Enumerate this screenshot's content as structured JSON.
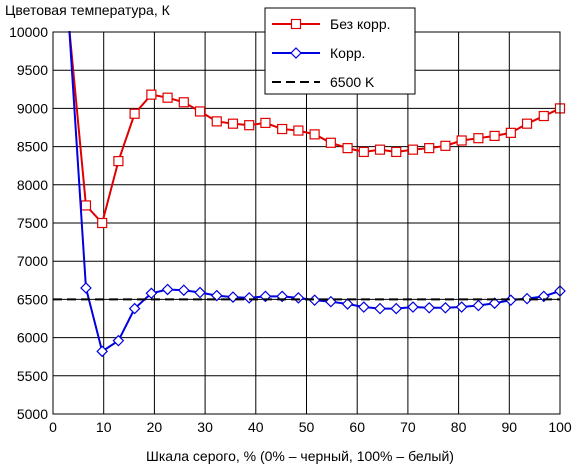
{
  "chart_data": {
    "type": "line",
    "ylabel": "Цветовая температура, К",
    "xlabel": "Шкала серого, % (0% – черный, 100% – белый)",
    "xlim": [
      0,
      100
    ],
    "ylim": [
      5000,
      10000
    ],
    "xticks": [
      0,
      10,
      20,
      30,
      40,
      50,
      60,
      70,
      80,
      90,
      100
    ],
    "yticks": [
      5000,
      5500,
      6000,
      6500,
      7000,
      7500,
      8000,
      8500,
      9000,
      9500,
      10000
    ],
    "grid": true,
    "legend_position": "top-center",
    "series": [
      {
        "name": "Без корр.",
        "color": "#e00000",
        "marker": "square",
        "x": [
          3.2,
          6.5,
          9.7,
          12.9,
          16.1,
          19.4,
          22.6,
          25.8,
          29.0,
          32.3,
          35.5,
          38.7,
          41.9,
          45.2,
          48.4,
          51.6,
          54.8,
          58.1,
          61.3,
          64.5,
          67.7,
          71.0,
          74.2,
          77.4,
          80.6,
          83.9,
          87.1,
          90.3,
          93.5,
          96.8,
          100.0
        ],
        "y": [
          10050,
          7730,
          7500,
          8310,
          8930,
          9180,
          9140,
          9080,
          8960,
          8830,
          8800,
          8780,
          8810,
          8730,
          8710,
          8660,
          8550,
          8480,
          8430,
          8460,
          8430,
          8460,
          8480,
          8510,
          8580,
          8610,
          8640,
          8680,
          8800,
          8900,
          9000
        ]
      },
      {
        "name": "Корр.",
        "color": "#0000e0",
        "marker": "diamond",
        "x": [
          3.2,
          6.5,
          9.7,
          12.9,
          16.1,
          19.4,
          22.6,
          25.8,
          29.0,
          32.3,
          35.5,
          38.7,
          41.9,
          45.2,
          48.4,
          51.6,
          54.8,
          58.1,
          61.3,
          64.5,
          67.7,
          71.0,
          74.2,
          77.4,
          80.6,
          83.9,
          87.1,
          90.3,
          93.5,
          96.8,
          100.0
        ],
        "y": [
          10050,
          6650,
          5820,
          5960,
          6380,
          6580,
          6630,
          6620,
          6590,
          6550,
          6530,
          6520,
          6540,
          6540,
          6520,
          6490,
          6470,
          6440,
          6400,
          6380,
          6380,
          6400,
          6390,
          6390,
          6400,
          6420,
          6450,
          6490,
          6510,
          6540,
          6610
        ]
      },
      {
        "name": "6500 K",
        "color": "#000000",
        "marker": "none",
        "dashed": true,
        "x": [
          0,
          100
        ],
        "y": [
          6500,
          6500
        ]
      }
    ]
  }
}
